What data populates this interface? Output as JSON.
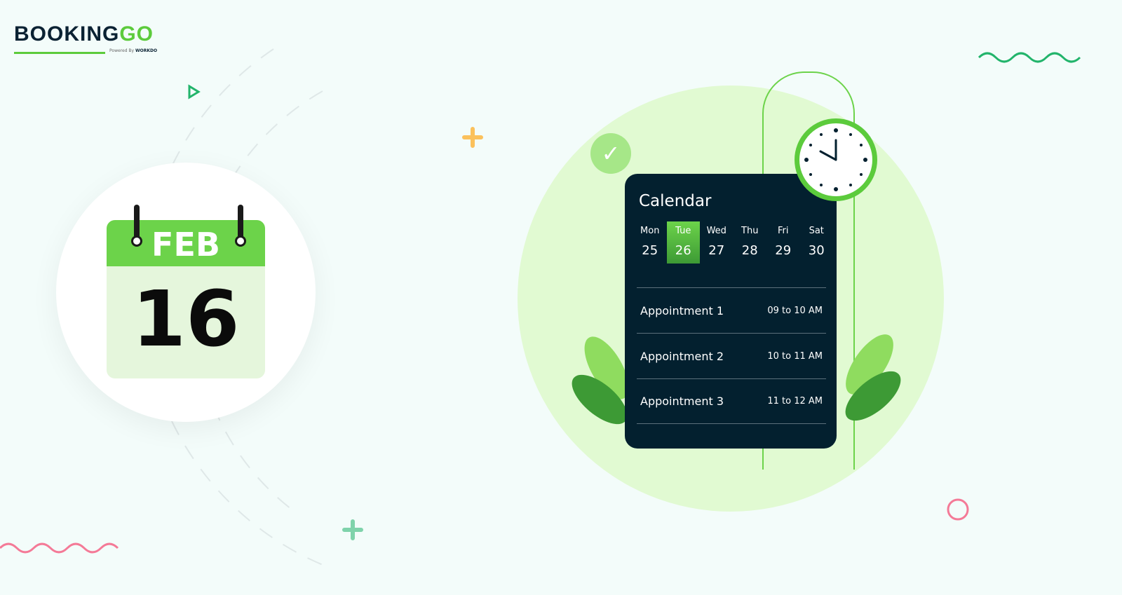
{
  "brand": {
    "name_part1": "BOOKING",
    "name_part2": "GO",
    "powered_by": "Powered By",
    "partner": "WORKDO"
  },
  "date_card": {
    "month": "FEB",
    "day": "16"
  },
  "calendar": {
    "title": "Calendar",
    "days": [
      {
        "name": "Mon",
        "date": "25"
      },
      {
        "name": "Tue",
        "date": "26",
        "selected": true
      },
      {
        "name": "Wed",
        "date": "27"
      },
      {
        "name": "Thu",
        "date": "28"
      },
      {
        "name": "Fri",
        "date": "29"
      },
      {
        "name": "Sat",
        "date": "30"
      }
    ],
    "appointments": [
      {
        "title": "Appointment 1",
        "time": "09 to 10 AM"
      },
      {
        "title": "Appointment 2",
        "time": "10 to 11 AM"
      },
      {
        "title": "Appointment 3",
        "time": "11 to 12 AM"
      }
    ]
  },
  "colors": {
    "accent": "#5ccb3c",
    "dark": "#03202f",
    "pink": "#f47a97",
    "orange": "#fbc15c"
  }
}
